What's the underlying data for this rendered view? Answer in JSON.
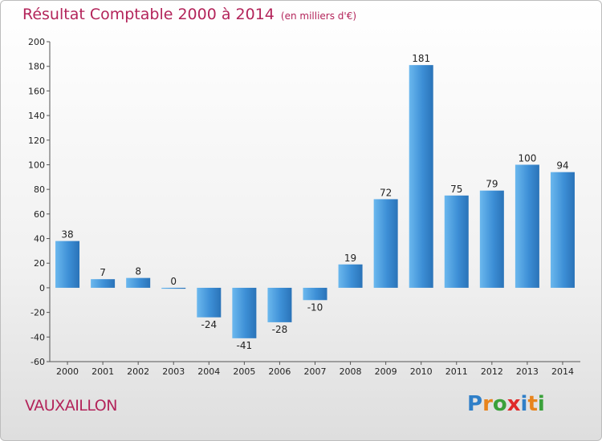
{
  "chart_data": {
    "type": "bar",
    "title": "Résultat Comptable 2000 à 2014",
    "subtitle": "(en milliers d'€)",
    "categories": [
      "2000",
      "2001",
      "2002",
      "2003",
      "2004",
      "2005",
      "2006",
      "2007",
      "2008",
      "2009",
      "2010",
      "2011",
      "2012",
      "2013",
      "2014"
    ],
    "values": [
      38,
      7,
      8,
      0,
      -24,
      -41,
      -28,
      -10,
      19,
      72,
      181,
      75,
      79,
      100,
      94
    ],
    "ylim": [
      -60,
      200
    ],
    "yticks": [
      -60,
      -40,
      -20,
      0,
      20,
      40,
      60,
      80,
      100,
      120,
      140,
      160,
      180,
      200
    ],
    "grid": false,
    "bar_color": "#3d8fd6"
  },
  "place_name": "VAUXAILLON",
  "logo": {
    "letters": [
      "P",
      "r",
      "o",
      "x",
      "i",
      "t",
      "i"
    ],
    "colors": [
      "#2f7fc8",
      "#e8841c",
      "#3aa13a",
      "#e02a2a",
      "#2f7fc8",
      "#e8841c",
      "#3aa13a"
    ]
  },
  "colors": {
    "title": "#b3245a",
    "text": "#222222"
  }
}
